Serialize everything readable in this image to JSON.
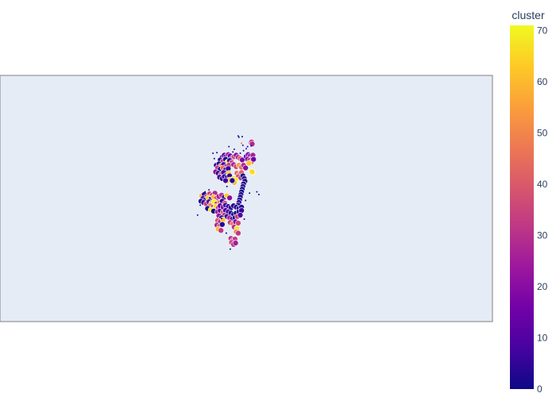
{
  "chart_data": {
    "type": "scatter",
    "subtype": "geo-scatter",
    "title": "",
    "colorbar": {
      "title": "cluster",
      "range": [
        0,
        71
      ],
      "ticks": [
        0,
        10,
        20,
        30,
        40,
        50,
        60,
        70
      ],
      "colorscale": [
        "#0d0887",
        "#46039f",
        "#7201a8",
        "#9c179e",
        "#bd3786",
        "#d8576b",
        "#ed7953",
        "#fb9f3a",
        "#fdca26",
        "#f0f921"
      ]
    },
    "map": {
      "background": "#e5ecf6",
      "frame": "#7f7f7f",
      "marker_outline": "#ffffff"
    },
    "points_note": "",
    "points": [
      [
        -1.2,
        9.4,
        3,
        2
      ],
      [
        -1.1,
        9.2,
        7,
        2
      ],
      [
        -0.6,
        9.3,
        1,
        2
      ],
      [
        -0.7,
        8.3,
        45,
        2
      ],
      [
        -0.5,
        8.0,
        5,
        2
      ],
      [
        0.7,
        8.4,
        25,
        7
      ],
      [
        0.8,
        8.5,
        30,
        7
      ],
      [
        0.9,
        8.2,
        28,
        7
      ],
      [
        0.75,
        7.9,
        2,
        2
      ],
      [
        0.0,
        7.5,
        6,
        2
      ],
      [
        -0.4,
        7.2,
        4,
        2
      ],
      [
        0.2,
        7.8,
        3,
        2
      ],
      [
        -3.6,
        6.2,
        9,
        7
      ],
      [
        -3.3,
        6.5,
        12,
        7
      ],
      [
        -3.0,
        6.3,
        8,
        7
      ],
      [
        -2.7,
        6.6,
        25,
        7
      ],
      [
        -2.4,
        6.4,
        10,
        7
      ],
      [
        -2.1,
        6.1,
        30,
        7
      ],
      [
        -1.8,
        6.3,
        35,
        7
      ],
      [
        -1.5,
        6.5,
        20,
        7
      ],
      [
        -1.2,
        6.2,
        28,
        7
      ],
      [
        -0.9,
        6.0,
        40,
        7
      ],
      [
        -0.6,
        5.8,
        18,
        7
      ],
      [
        -3.9,
        5.8,
        4,
        7
      ],
      [
        -3.5,
        5.6,
        30,
        7
      ],
      [
        -3.1,
        5.9,
        2,
        7
      ],
      [
        -2.8,
        5.5,
        65,
        7
      ],
      [
        -2.5,
        5.7,
        5,
        7
      ],
      [
        -2.2,
        5.4,
        33,
        7
      ],
      [
        0.0,
        6.3,
        12,
        7
      ],
      [
        0.3,
        6.6,
        18,
        7
      ],
      [
        0.6,
        6.4,
        22,
        7
      ],
      [
        0.9,
        6.1,
        28,
        7
      ],
      [
        0.2,
        5.9,
        15,
        7
      ],
      [
        0.5,
        5.7,
        30,
        7
      ],
      [
        0.8,
        5.5,
        48,
        7
      ],
      [
        1.0,
        6.5,
        26,
        7
      ],
      [
        1.1,
        5.9,
        14,
        7
      ],
      [
        0.4,
        5.3,
        62,
        7
      ],
      [
        -4.5,
        5.0,
        7,
        7
      ],
      [
        -4.1,
        5.2,
        3,
        7
      ],
      [
        -3.8,
        4.9,
        50,
        7
      ],
      [
        -3.4,
        5.1,
        8,
        7
      ],
      [
        -3.0,
        4.8,
        11,
        7
      ],
      [
        -2.6,
        5.0,
        34,
        7
      ],
      [
        -4.3,
        4.6,
        32,
        7
      ],
      [
        -3.9,
        4.4,
        2,
        7
      ],
      [
        -3.5,
        4.6,
        45,
        7
      ],
      [
        -3.1,
        4.3,
        6,
        7
      ],
      [
        -2.7,
        4.5,
        5,
        7
      ],
      [
        -1.9,
        5.1,
        28,
        7
      ],
      [
        -1.5,
        4.8,
        35,
        7
      ],
      [
        -1.1,
        5.0,
        55,
        7
      ],
      [
        -0.7,
        4.7,
        44,
        7
      ],
      [
        -0.4,
        5.0,
        30,
        7
      ],
      [
        -0.1,
        4.6,
        20,
        7
      ],
      [
        0.8,
        4.1,
        68,
        7
      ],
      [
        1.0,
        3.9,
        70,
        7
      ],
      [
        0.9,
        4.0,
        66,
        7
      ],
      [
        -4.6,
        4.0,
        20,
        7
      ],
      [
        -4.2,
        3.8,
        5,
        7
      ],
      [
        -3.8,
        3.6,
        40,
        7
      ],
      [
        -3.4,
        3.9,
        9,
        7
      ],
      [
        -3.0,
        3.5,
        3,
        7
      ],
      [
        -2.6,
        3.8,
        64,
        7
      ],
      [
        -4.0,
        3.2,
        8,
        7
      ],
      [
        -3.6,
        3.0,
        2,
        7
      ],
      [
        -3.3,
        3.3,
        6,
        7
      ],
      [
        -2.9,
        3.1,
        4,
        7
      ],
      [
        -2.5,
        3.4,
        5,
        7
      ],
      [
        -2.8,
        2.6,
        68,
        7
      ],
      [
        -2.5,
        2.8,
        62,
        7
      ],
      [
        -3.1,
        2.7,
        7,
        7
      ],
      [
        -1.4,
        3.8,
        44,
        7
      ],
      [
        -1.0,
        3.6,
        35,
        7
      ],
      [
        -0.7,
        3.9,
        42,
        7
      ],
      [
        -1.2,
        3.3,
        38,
        7
      ],
      [
        -0.8,
        3.1,
        30,
        7
      ],
      [
        -0.5,
        3.4,
        2,
        7
      ],
      [
        -0.3,
        3.0,
        1,
        7
      ],
      [
        -0.2,
        2.6,
        3,
        7
      ],
      [
        -0.4,
        2.2,
        1,
        7
      ],
      [
        -0.5,
        1.8,
        4,
        7
      ],
      [
        -0.6,
        1.4,
        2,
        7
      ],
      [
        -0.7,
        1.0,
        0,
        7
      ],
      [
        -0.8,
        0.6,
        3,
        7
      ],
      [
        -0.9,
        0.2,
        1,
        7
      ],
      [
        -1.0,
        -0.2,
        2,
        7
      ],
      [
        -1.1,
        -0.6,
        5,
        7
      ],
      [
        -1.2,
        -1.0,
        1,
        7
      ],
      [
        -1.9,
        3.0,
        65,
        7
      ],
      [
        -1.6,
        2.8,
        68,
        7
      ],
      [
        -1.8,
        2.4,
        60,
        7
      ],
      [
        -2.1,
        2.7,
        2,
        7
      ],
      [
        -6.7,
        0.4,
        60,
        7
      ],
      [
        -6.3,
        0.6,
        4,
        7
      ],
      [
        -5.9,
        0.3,
        30,
        7
      ],
      [
        -5.5,
        0.7,
        35,
        7
      ],
      [
        -5.1,
        0.5,
        32,
        7
      ],
      [
        -4.7,
        0.8,
        28,
        7
      ],
      [
        -6.5,
        0.0,
        8,
        7
      ],
      [
        -6.1,
        -0.2,
        5,
        7
      ],
      [
        -5.7,
        0.1,
        65,
        7
      ],
      [
        -5.3,
        -0.1,
        3,
        7
      ],
      [
        -4.9,
        0.2,
        60,
        7
      ],
      [
        -4.5,
        0.0,
        40,
        7
      ],
      [
        -4.1,
        0.3,
        25,
        7
      ],
      [
        -3.7,
        0.5,
        30,
        7
      ],
      [
        -3.3,
        0.2,
        8,
        7
      ],
      [
        -2.9,
        0.4,
        63,
        7
      ],
      [
        -2.5,
        0.1,
        22,
        7
      ],
      [
        -6.8,
        -0.4,
        2,
        7
      ],
      [
        -6.4,
        -0.6,
        6,
        7
      ],
      [
        -6.0,
        -0.8,
        33,
        7
      ],
      [
        -5.6,
        -0.5,
        9,
        7
      ],
      [
        -5.2,
        -0.7,
        60,
        7
      ],
      [
        -4.8,
        -0.5,
        70,
        7
      ],
      [
        -4.4,
        -0.8,
        28,
        7
      ],
      [
        -4.0,
        -0.6,
        50,
        7
      ],
      [
        -3.6,
        -0.4,
        4,
        7
      ],
      [
        -3.2,
        -0.7,
        35,
        7
      ],
      [
        -5.4,
        -1.1,
        48,
        7
      ],
      [
        -5.0,
        -1.3,
        30,
        7
      ],
      [
        -4.6,
        -1.2,
        66,
        7
      ],
      [
        -4.2,
        -1.4,
        35,
        7
      ],
      [
        -5.8,
        -1.5,
        3,
        7
      ],
      [
        -5.3,
        -1.7,
        68,
        7
      ],
      [
        -4.9,
        -1.9,
        0,
        7
      ],
      [
        -4.3,
        -2.0,
        25,
        7
      ],
      [
        -3.9,
        -1.8,
        12,
        7
      ],
      [
        -3.5,
        -2.1,
        40,
        7
      ],
      [
        -3.9,
        -1.1,
        10,
        7
      ],
      [
        -3.5,
        -1.3,
        20,
        7
      ],
      [
        -3.1,
        -1.0,
        6,
        7
      ],
      [
        -2.7,
        -1.2,
        8,
        7
      ],
      [
        -2.3,
        -1.4,
        3,
        7
      ],
      [
        -1.9,
        -1.1,
        2,
        7
      ],
      [
        -1.5,
        -1.3,
        5,
        7
      ],
      [
        -1.1,
        -1.5,
        1,
        7
      ],
      [
        -0.7,
        -1.3,
        4,
        7
      ],
      [
        -3.1,
        -1.8,
        7,
        7
      ],
      [
        -2.7,
        -2.0,
        9,
        7
      ],
      [
        -2.3,
        -2.2,
        1,
        7
      ],
      [
        -1.9,
        -2.4,
        3,
        7
      ],
      [
        -1.5,
        -2.2,
        0,
        7
      ],
      [
        -1.1,
        -2.0,
        2,
        7
      ],
      [
        -0.7,
        -1.8,
        6,
        7
      ],
      [
        -3.3,
        -2.5,
        30,
        7
      ],
      [
        -2.9,
        -2.7,
        5,
        7
      ],
      [
        -2.5,
        -2.9,
        28,
        7
      ],
      [
        -2.1,
        -3.1,
        8,
        7
      ],
      [
        -1.7,
        -2.9,
        2,
        7
      ],
      [
        -1.3,
        -2.7,
        33,
        7
      ],
      [
        -0.9,
        -2.5,
        10,
        7
      ],
      [
        -4.1,
        -2.6,
        22,
        7
      ],
      [
        -3.7,
        -2.9,
        6,
        7
      ],
      [
        -4.3,
        -3.3,
        40,
        7
      ],
      [
        -3.9,
        -3.5,
        30,
        7
      ],
      [
        -3.5,
        -3.2,
        62,
        7
      ],
      [
        -4.4,
        -4.0,
        28,
        7
      ],
      [
        -4.0,
        -4.2,
        35,
        7
      ],
      [
        -3.6,
        -3.9,
        4,
        7
      ],
      [
        -4.2,
        -4.6,
        60,
        7
      ],
      [
        -3.8,
        -4.8,
        32,
        7
      ],
      [
        -2.4,
        -3.6,
        33,
        7
      ],
      [
        -2.0,
        -3.8,
        48,
        7
      ],
      [
        -1.6,
        -3.5,
        20,
        7
      ],
      [
        -1.2,
        -3.7,
        35,
        7
      ],
      [
        -1.8,
        -4.3,
        30,
        7
      ],
      [
        -1.4,
        -4.5,
        68,
        7
      ],
      [
        -1.5,
        -5.0,
        50,
        7
      ],
      [
        -1.2,
        -5.2,
        32,
        7
      ],
      [
        -2.3,
        -6.0,
        30,
        7
      ],
      [
        -2.0,
        -6.3,
        28,
        7
      ],
      [
        -1.7,
        -6.1,
        33,
        7
      ],
      [
        -2.2,
        -6.6,
        35,
        7
      ],
      [
        -1.9,
        -6.9,
        30,
        7
      ],
      [
        -1.6,
        -6.7,
        25,
        7
      ],
      [
        -7.3,
        -2.5,
        5,
        2
      ],
      [
        -6.9,
        -1.0,
        3,
        2
      ],
      [
        -5.0,
        6.8,
        4,
        2
      ],
      [
        -4.8,
        6.0,
        2,
        2
      ],
      [
        -2.0,
        7.0,
        3,
        2
      ],
      [
        1.6,
        1.0,
        6,
        2
      ],
      [
        1.9,
        0.6,
        2,
        2
      ],
      [
        -0.3,
        -3.1,
        4,
        2
      ],
      [
        -2.4,
        -7.6,
        2,
        2
      ],
      [
        -3.0,
        -5.2,
        3,
        2
      ],
      [
        -5.6,
        1.3,
        5,
        2
      ],
      [
        -2.9,
        1.8,
        2,
        2
      ],
      [
        0.5,
        0.8,
        1,
        2
      ],
      [
        -0.1,
        -0.3,
        3,
        2
      ],
      [
        -1.8,
        7.4,
        4,
        2
      ],
      [
        -6.2,
        1.0,
        2,
        2
      ],
      [
        -4.4,
        6.9,
        1,
        2
      ],
      [
        -2.6,
        7.8,
        5,
        2
      ],
      [
        -0.9,
        6.8,
        3,
        2
      ],
      [
        -3.7,
        -3.0,
        2,
        2
      ]
    ]
  }
}
